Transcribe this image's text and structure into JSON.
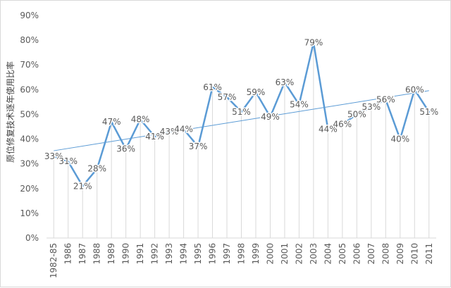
{
  "chart_data": {
    "type": "line",
    "title": "",
    "xlabel": "",
    "ylabel": "原位修复技术逐年使用比率",
    "ylim": [
      0,
      90
    ],
    "y_ticks": [
      "0%",
      "10%",
      "20%",
      "30%",
      "40%",
      "50%",
      "60%",
      "70%",
      "80%",
      "90%"
    ],
    "categories": [
      "1982-85",
      "1986",
      "1987",
      "1988",
      "1989",
      "1990",
      "1991",
      "1992",
      "1993",
      "1994",
      "1995",
      "1996",
      "1997",
      "1998",
      "1999",
      "2000",
      "2001",
      "2002",
      "2003",
      "2004",
      "2005",
      "2006",
      "2007",
      "2008",
      "2009",
      "2010",
      "2011"
    ],
    "series": [
      {
        "values": [
          33,
          31,
          21,
          28,
          47,
          36,
          48,
          41,
          43,
          44,
          37,
          61,
          57,
          51,
          59,
          49,
          63,
          54,
          79,
          44,
          46,
          50,
          53,
          56,
          40,
          60,
          51
        ],
        "labels": [
          "33%",
          "31%",
          "21%",
          "28%",
          "47%",
          "36%",
          "48%",
          "41%",
          "43%",
          "44%",
          "37%",
          "61%",
          "57%",
          "51%",
          "59%",
          "49%",
          "63%",
          "54%",
          "79%",
          "44%",
          "46%",
          "50%",
          "53%",
          "56%",
          "40%",
          "60%",
          "51%"
        ]
      }
    ],
    "trendline": {
      "type": "linear",
      "start": 35.3,
      "end": 59.6
    },
    "grid": "vertical drop lines",
    "legend": "none",
    "colors": {
      "line": "#5b9bd5",
      "trend": "#5b9bd5",
      "grid": "#d9d9d9",
      "text": "#595959"
    }
  }
}
